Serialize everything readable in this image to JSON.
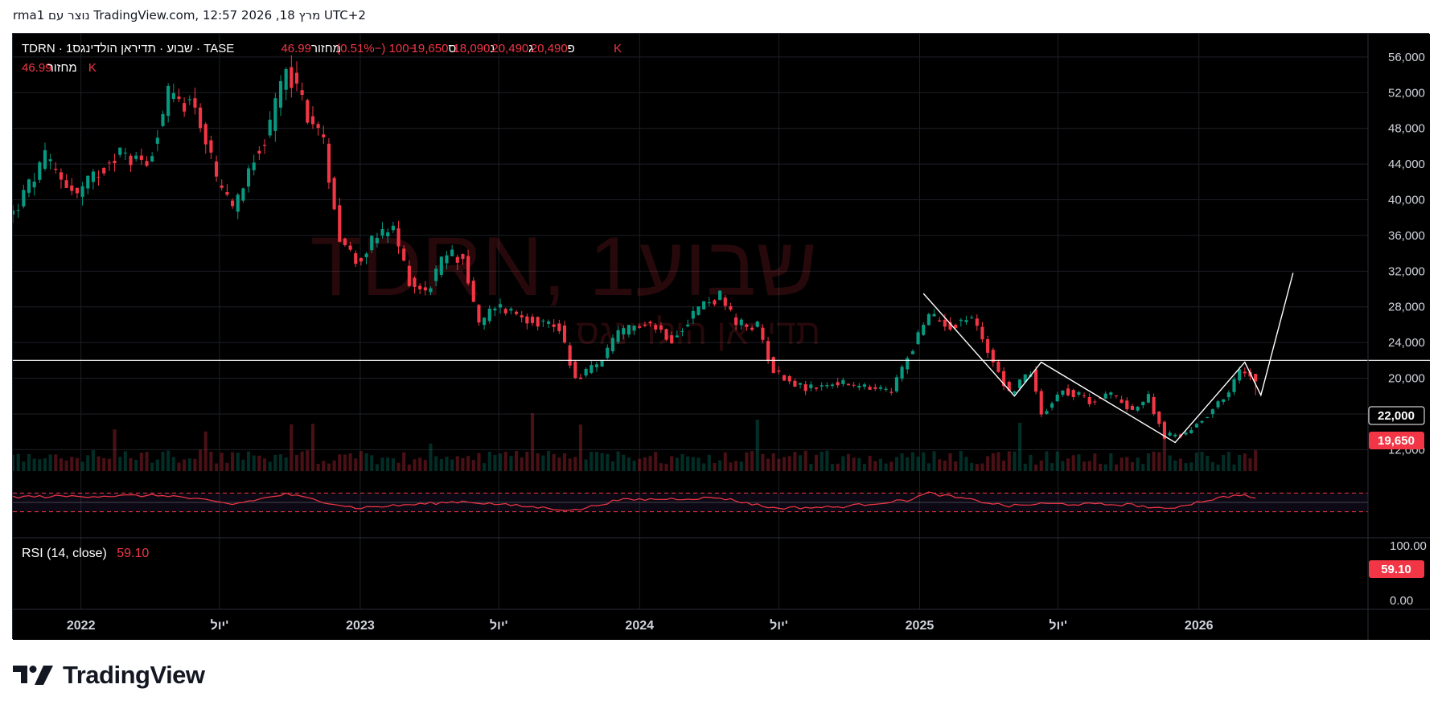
{
  "caption": "rma1 נוצר עם TradingView.com, 12:57 2026 ,18 מרץ UTC+2",
  "legend": {
    "symbol_line": "TDRN · 1שבוע · תדיראן הולדינגס · TASE",
    "o_label": "פ",
    "o_value": "20,490",
    "h_label": "ג",
    "h_value": "20,490",
    "l_label": "נ",
    "l_value": "18,090",
    "c_label": "ס",
    "c_value": "19,650",
    "change": "−100 (−0.51%)",
    "vol_label": "מחזור",
    "vol_value": "46.99 K",
    "vol2_label": "מחזור",
    "vol2_value": "46.99 K"
  },
  "watermark": {
    "main": "TDRN, 1שבוע",
    "sub": "תדיראן הולדינגס"
  },
  "rsi": {
    "label": "RSI (14, close)",
    "value": "59.10",
    "scale_top": "100.00",
    "scale_bottom": "0.00"
  },
  "price_labels": {
    "line": "22,000",
    "last": "19,650"
  },
  "brand": {
    "name": "TradingView"
  },
  "colors": {
    "up": "#089981",
    "down": "#f23645",
    "line": "#ffffff",
    "rsi": "#f23645",
    "background": "#000000"
  },
  "chart_data": {
    "type": "candlestick",
    "timeframe": "1 week",
    "y_axis_ticks": [
      56000,
      52000,
      48000,
      44000,
      40000,
      36000,
      32000,
      28000,
      24000,
      20000,
      16000,
      12000
    ],
    "y_axis_labels": [
      "56,000",
      "52,000",
      "48,000",
      "44,000",
      "40,000",
      "36,000",
      "32,000",
      "28,000",
      "24,000",
      "20,000",
      "16,000",
      "12,000"
    ],
    "ylim": [
      9600,
      58600
    ],
    "x_axis_labels": [
      "2022",
      "יול'",
      "2023",
      "יול'",
      "2024",
      "יול'",
      "2025",
      "יול'",
      "2026"
    ],
    "x_axis_dates": [
      "2022-01-01",
      "2022-07-01",
      "2023-01-01",
      "2023-07-01",
      "2024-01-01",
      "2024-07-01",
      "2025-01-01",
      "2025-07-01",
      "2026-01-01"
    ],
    "x_range": [
      "2021-10-04",
      "2026-08-10"
    ],
    "price_path": [
      [
        "2021-10-04",
        38500
      ],
      [
        "2021-11-15",
        44500
      ],
      [
        "2021-12-27",
        40500
      ],
      [
        "2022-02-14",
        45200
      ],
      [
        "2022-03-28",
        44200
      ],
      [
        "2022-04-25",
        51500
      ],
      [
        "2022-05-30",
        50800
      ],
      [
        "2022-06-27",
        42000
      ],
      [
        "2022-07-18",
        38500
      ],
      [
        "2022-08-15",
        45200
      ],
      [
        "2022-09-05",
        47800
      ],
      [
        "2022-09-26",
        55300
      ],
      [
        "2022-10-17",
        51000
      ],
      [
        "2022-11-14",
        46200
      ],
      [
        "2022-12-05",
        36000
      ],
      [
        "2022-12-26",
        33200
      ],
      [
        "2023-01-23",
        35800
      ],
      [
        "2023-02-13",
        36500
      ],
      [
        "2023-03-06",
        31000
      ],
      [
        "2023-03-27",
        29600
      ],
      [
        "2023-04-24",
        34000
      ],
      [
        "2023-05-15",
        33500
      ],
      [
        "2023-06-05",
        25800
      ],
      [
        "2023-06-26",
        28200
      ],
      [
        "2023-08-07",
        26800
      ],
      [
        "2023-09-18",
        25700
      ],
      [
        "2023-10-09",
        20000
      ],
      [
        "2023-11-06",
        21500
      ],
      [
        "2023-12-04",
        24800
      ],
      [
        "2024-01-08",
        26500
      ],
      [
        "2024-02-12",
        24500
      ],
      [
        "2024-03-18",
        28000
      ],
      [
        "2024-04-15",
        29200
      ],
      [
        "2024-05-06",
        26000
      ],
      [
        "2024-06-03",
        25800
      ],
      [
        "2024-06-24",
        20800
      ],
      [
        "2024-08-05",
        18800
      ],
      [
        "2024-09-16",
        19500
      ],
      [
        "2024-10-14",
        19000
      ],
      [
        "2024-11-25",
        18500
      ],
      [
        "2024-12-16",
        22500
      ],
      [
        "2025-01-13",
        27000
      ],
      [
        "2025-02-10",
        26000
      ],
      [
        "2025-03-10",
        26800
      ],
      [
        "2025-04-07",
        22000
      ],
      [
        "2025-04-28",
        18300
      ],
      [
        "2025-05-26",
        20800
      ],
      [
        "2025-06-09",
        16000
      ],
      [
        "2025-07-07",
        18800
      ],
      [
        "2025-08-11",
        17500
      ],
      [
        "2025-09-08",
        18200
      ],
      [
        "2025-10-06",
        16500
      ],
      [
        "2025-10-27",
        17800
      ],
      [
        "2025-11-17",
        13500
      ],
      [
        "2025-12-15",
        13800
      ],
      [
        "2026-01-12",
        16000
      ],
      [
        "2026-02-09",
        18500
      ],
      [
        "2026-02-23",
        20800
      ],
      [
        "2026-03-09",
        20400
      ],
      [
        "2026-03-16",
        19650
      ]
    ],
    "last_close": 19650,
    "horizontal_line": 22000,
    "drawn_pattern": [
      [
        "2025-01-06",
        29500
      ],
      [
        "2025-05-05",
        18000
      ],
      [
        "2025-06-09",
        21800
      ],
      [
        "2025-12-01",
        12800
      ],
      [
        "2026-03-02",
        21800
      ],
      [
        "2026-03-23",
        18100
      ],
      [
        "2026-05-04",
        31800
      ]
    ],
    "rsi": {
      "ylim": [
        0,
        100
      ],
      "upper_band": 70,
      "lower_band": 30,
      "last": 59.1,
      "path": [
        [
          "2021-10-04",
          62
        ],
        [
          "2022-04-25",
          65
        ],
        [
          "2022-07-18",
          46
        ],
        [
          "2022-09-26",
          68
        ],
        [
          "2022-12-26",
          38
        ],
        [
          "2023-05-15",
          52
        ],
        [
          "2023-10-09",
          33
        ],
        [
          "2023-12-04",
          55
        ],
        [
          "2024-04-15",
          60
        ],
        [
          "2024-06-24",
          38
        ],
        [
          "2024-09-16",
          40
        ],
        [
          "2024-12-16",
          55
        ],
        [
          "2025-01-13",
          70
        ],
        [
          "2025-04-28",
          42
        ],
        [
          "2025-06-09",
          47
        ],
        [
          "2025-10-06",
          45
        ],
        [
          "2025-11-17",
          35
        ],
        [
          "2026-01-12",
          55
        ],
        [
          "2026-02-23",
          67
        ],
        [
          "2026-03-16",
          59
        ]
      ]
    }
  }
}
